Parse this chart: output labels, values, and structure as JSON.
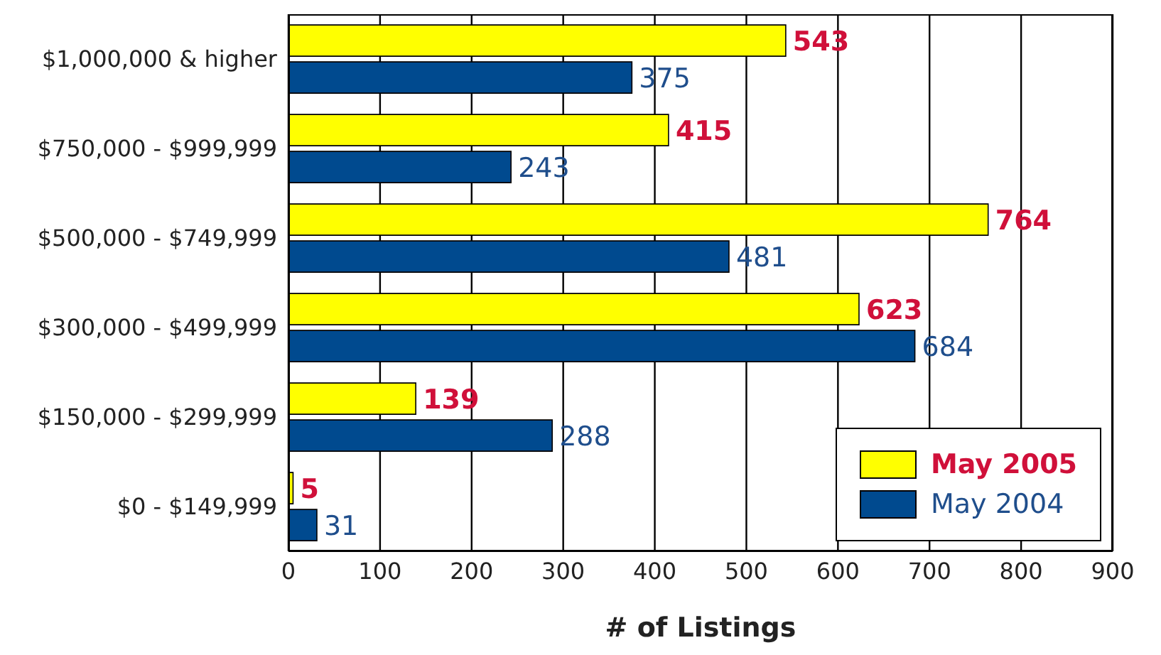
{
  "chart_data": {
    "type": "bar",
    "orientation": "horizontal",
    "xlabel": "# of Listings",
    "categories": [
      "$1,000,000 & higher",
      "$750,000 - $999,999",
      "$500,000 - $749,999",
      "$300,000 - $499,999",
      "$150,000 - $299,999",
      "$0 - $149,999"
    ],
    "series": [
      {
        "name": "May 2005",
        "color": "#ffff00",
        "values": [
          543,
          415,
          764,
          623,
          139,
          5
        ]
      },
      {
        "name": "May 2004",
        "color": "#004a8f",
        "values": [
          375,
          243,
          481,
          684,
          288,
          31
        ]
      }
    ],
    "xlim": [
      0,
      900
    ],
    "xticks": [
      0,
      100,
      200,
      300,
      400,
      500,
      600,
      700,
      800,
      900
    ],
    "grid": "x",
    "legend": "bottom right",
    "data_labels": true
  }
}
